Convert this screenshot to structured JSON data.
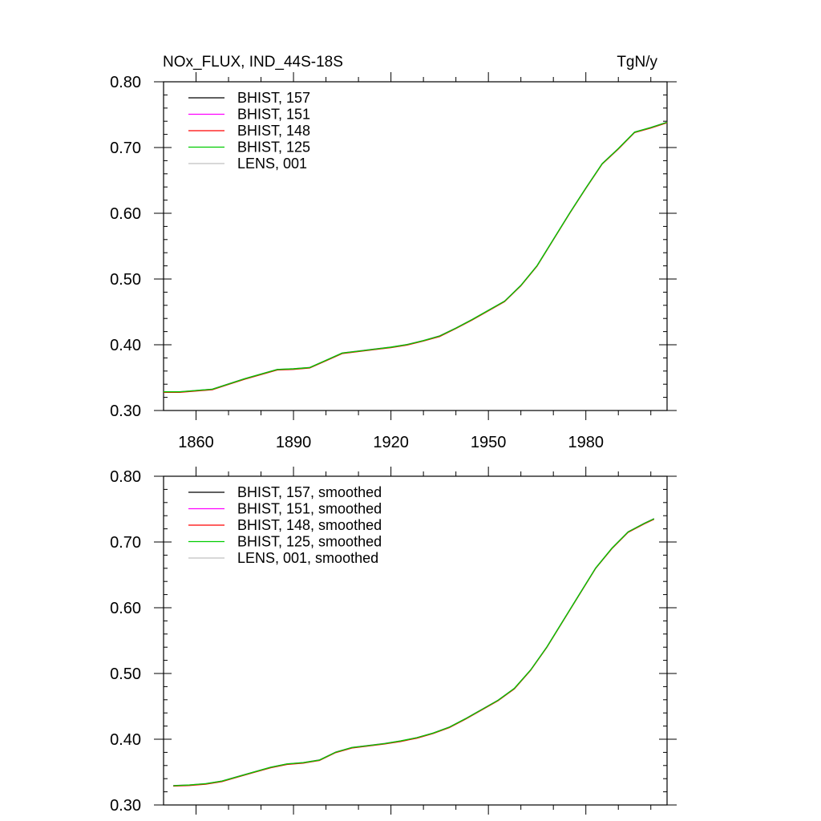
{
  "chart_data": [
    {
      "type": "line",
      "title": "NOx_FLUX, IND_44S-18S",
      "units": "TgN/y",
      "xlim": [
        1850,
        2005
      ],
      "ylim": [
        0.3,
        0.8
      ],
      "x_ticks": [
        1860,
        1890,
        1920,
        1950,
        1980
      ],
      "y_ticks": [
        "0.30",
        "0.40",
        "0.50",
        "0.60",
        "0.70",
        "0.80"
      ],
      "legend_position": "top-left",
      "grid": false,
      "series": [
        {
          "name": "BHIST, 157",
          "color": "#000000"
        },
        {
          "name": "BHIST, 151",
          "color": "#ff00ff"
        },
        {
          "name": "BHIST, 148",
          "color": "#ff0000"
        },
        {
          "name": "BHIST, 125",
          "color": "#00cc00"
        },
        {
          "name": "LENS, 001",
          "color": "#c0c0c0"
        }
      ],
      "x": [
        1850,
        1855,
        1860,
        1865,
        1870,
        1875,
        1880,
        1885,
        1890,
        1895,
        1900,
        1905,
        1910,
        1915,
        1920,
        1925,
        1930,
        1935,
        1940,
        1945,
        1950,
        1955,
        1960,
        1965,
        1970,
        1975,
        1980,
        1985,
        1990,
        1995,
        2000,
        2005
      ],
      "y": [
        0.328,
        0.328,
        0.33,
        0.332,
        0.34,
        0.348,
        0.355,
        0.362,
        0.363,
        0.365,
        0.376,
        0.387,
        0.39,
        0.393,
        0.396,
        0.4,
        0.406,
        0.413,
        0.425,
        0.438,
        0.452,
        0.466,
        0.49,
        0.52,
        0.56,
        0.6,
        0.638,
        0.675,
        0.698,
        0.723,
        0.73,
        0.738
      ]
    },
    {
      "type": "line",
      "xlim": [
        1850,
        2005
      ],
      "ylim": [
        0.3,
        0.8
      ],
      "y_ticks": [
        "0.30",
        "0.40",
        "0.50",
        "0.60",
        "0.70",
        "0.80"
      ],
      "legend_position": "top-left",
      "grid": false,
      "series": [
        {
          "name": "BHIST, 157, smoothed",
          "color": "#000000"
        },
        {
          "name": "BHIST, 151, smoothed",
          "color": "#ff00ff"
        },
        {
          "name": "BHIST, 148, smoothed",
          "color": "#ff0000"
        },
        {
          "name": "BHIST, 125, smoothed",
          "color": "#00cc00"
        },
        {
          "name": "LENS, 001, smoothed",
          "color": "#c0c0c0"
        }
      ],
      "x": [
        1853,
        1858,
        1863,
        1868,
        1873,
        1878,
        1883,
        1888,
        1893,
        1898,
        1903,
        1908,
        1913,
        1918,
        1923,
        1928,
        1933,
        1938,
        1943,
        1948,
        1953,
        1958,
        1963,
        1968,
        1973,
        1978,
        1983,
        1988,
        1993,
        1998,
        2001
      ],
      "y": [
        0.329,
        0.33,
        0.332,
        0.336,
        0.343,
        0.35,
        0.357,
        0.362,
        0.364,
        0.368,
        0.38,
        0.387,
        0.39,
        0.393,
        0.397,
        0.402,
        0.409,
        0.418,
        0.431,
        0.445,
        0.459,
        0.477,
        0.505,
        0.54,
        0.58,
        0.62,
        0.66,
        0.69,
        0.715,
        0.728,
        0.735
      ]
    }
  ]
}
